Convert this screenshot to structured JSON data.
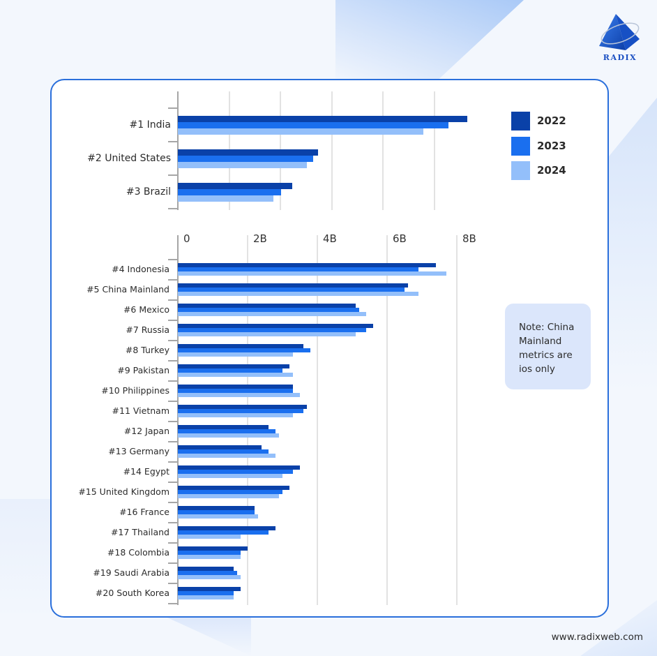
{
  "brand": {
    "logo_text": "RADIX",
    "url": "www.radixweb.com"
  },
  "legend": [
    {
      "label": "2022",
      "color": "#0A41A8"
    },
    {
      "label": "2023",
      "color": "#1A6FEF"
    },
    {
      "label": "2024",
      "color": "#93BFFA"
    }
  ],
  "note": {
    "text": "Note: China Mainland metrics are ios only"
  },
  "colors": {
    "accent_border": "#2A6FDB",
    "background": "#F3F7FD",
    "note_bg": "#DBE6FB"
  },
  "chart_data": [
    {
      "type": "bar",
      "orientation": "horizontal",
      "title": "",
      "xlabel": "",
      "ylabel": "",
      "note": "Top 3 countries; separate panel without tick labels (values in gridline units, scale not labeled)",
      "grid": true,
      "gridlines": 5,
      "categories": [
        "#1 India",
        "#2 United States",
        "#3 Brazil"
      ],
      "series": [
        {
          "name": "2022",
          "values": [
            5.64,
            2.73,
            2.23
          ]
        },
        {
          "name": "2023",
          "values": [
            5.27,
            2.64,
            2.01
          ]
        },
        {
          "name": "2024",
          "values": [
            4.78,
            2.51,
            1.86
          ]
        }
      ],
      "xlim": [
        0,
        5.9
      ]
    },
    {
      "type": "bar",
      "orientation": "horizontal",
      "title": "",
      "xlabel": "",
      "ylabel": "",
      "grid": true,
      "xticks": [
        "0",
        "2B",
        "4B",
        "6B",
        "8B"
      ],
      "xlim": [
        0,
        8
      ],
      "legend_position": "right",
      "categories": [
        "#4 Indonesia",
        "#5 China Mainland",
        "#6 Mexico",
        "#7 Russia",
        "#8 Turkey",
        "#9 Pakistan",
        "#10 Philippines",
        "#11 Vietnam",
        "#12 Japan",
        "#13 Germany",
        "#14 Egypt",
        "#15 United Kingdom",
        "#16 France",
        "#17 Thailand",
        "#18 Colombia",
        "#19 Saudi Arabia",
        "#20 South Korea"
      ],
      "series": [
        {
          "name": "2022",
          "values": [
            7.4,
            6.6,
            5.1,
            5.6,
            3.6,
            3.2,
            3.3,
            3.7,
            2.6,
            2.4,
            3.5,
            3.2,
            2.2,
            2.8,
            2.0,
            1.6,
            1.8
          ]
        },
        {
          "name": "2023",
          "values": [
            6.9,
            6.5,
            5.2,
            5.4,
            3.8,
            3.0,
            3.3,
            3.6,
            2.8,
            2.6,
            3.3,
            3.0,
            2.2,
            2.6,
            1.8,
            1.7,
            1.6
          ]
        },
        {
          "name": "2024",
          "values": [
            7.7,
            6.9,
            5.4,
            5.1,
            3.3,
            3.3,
            3.5,
            3.3,
            2.9,
            2.8,
            3.0,
            2.9,
            2.3,
            1.8,
            1.8,
            1.8,
            1.6
          ]
        }
      ]
    }
  ]
}
